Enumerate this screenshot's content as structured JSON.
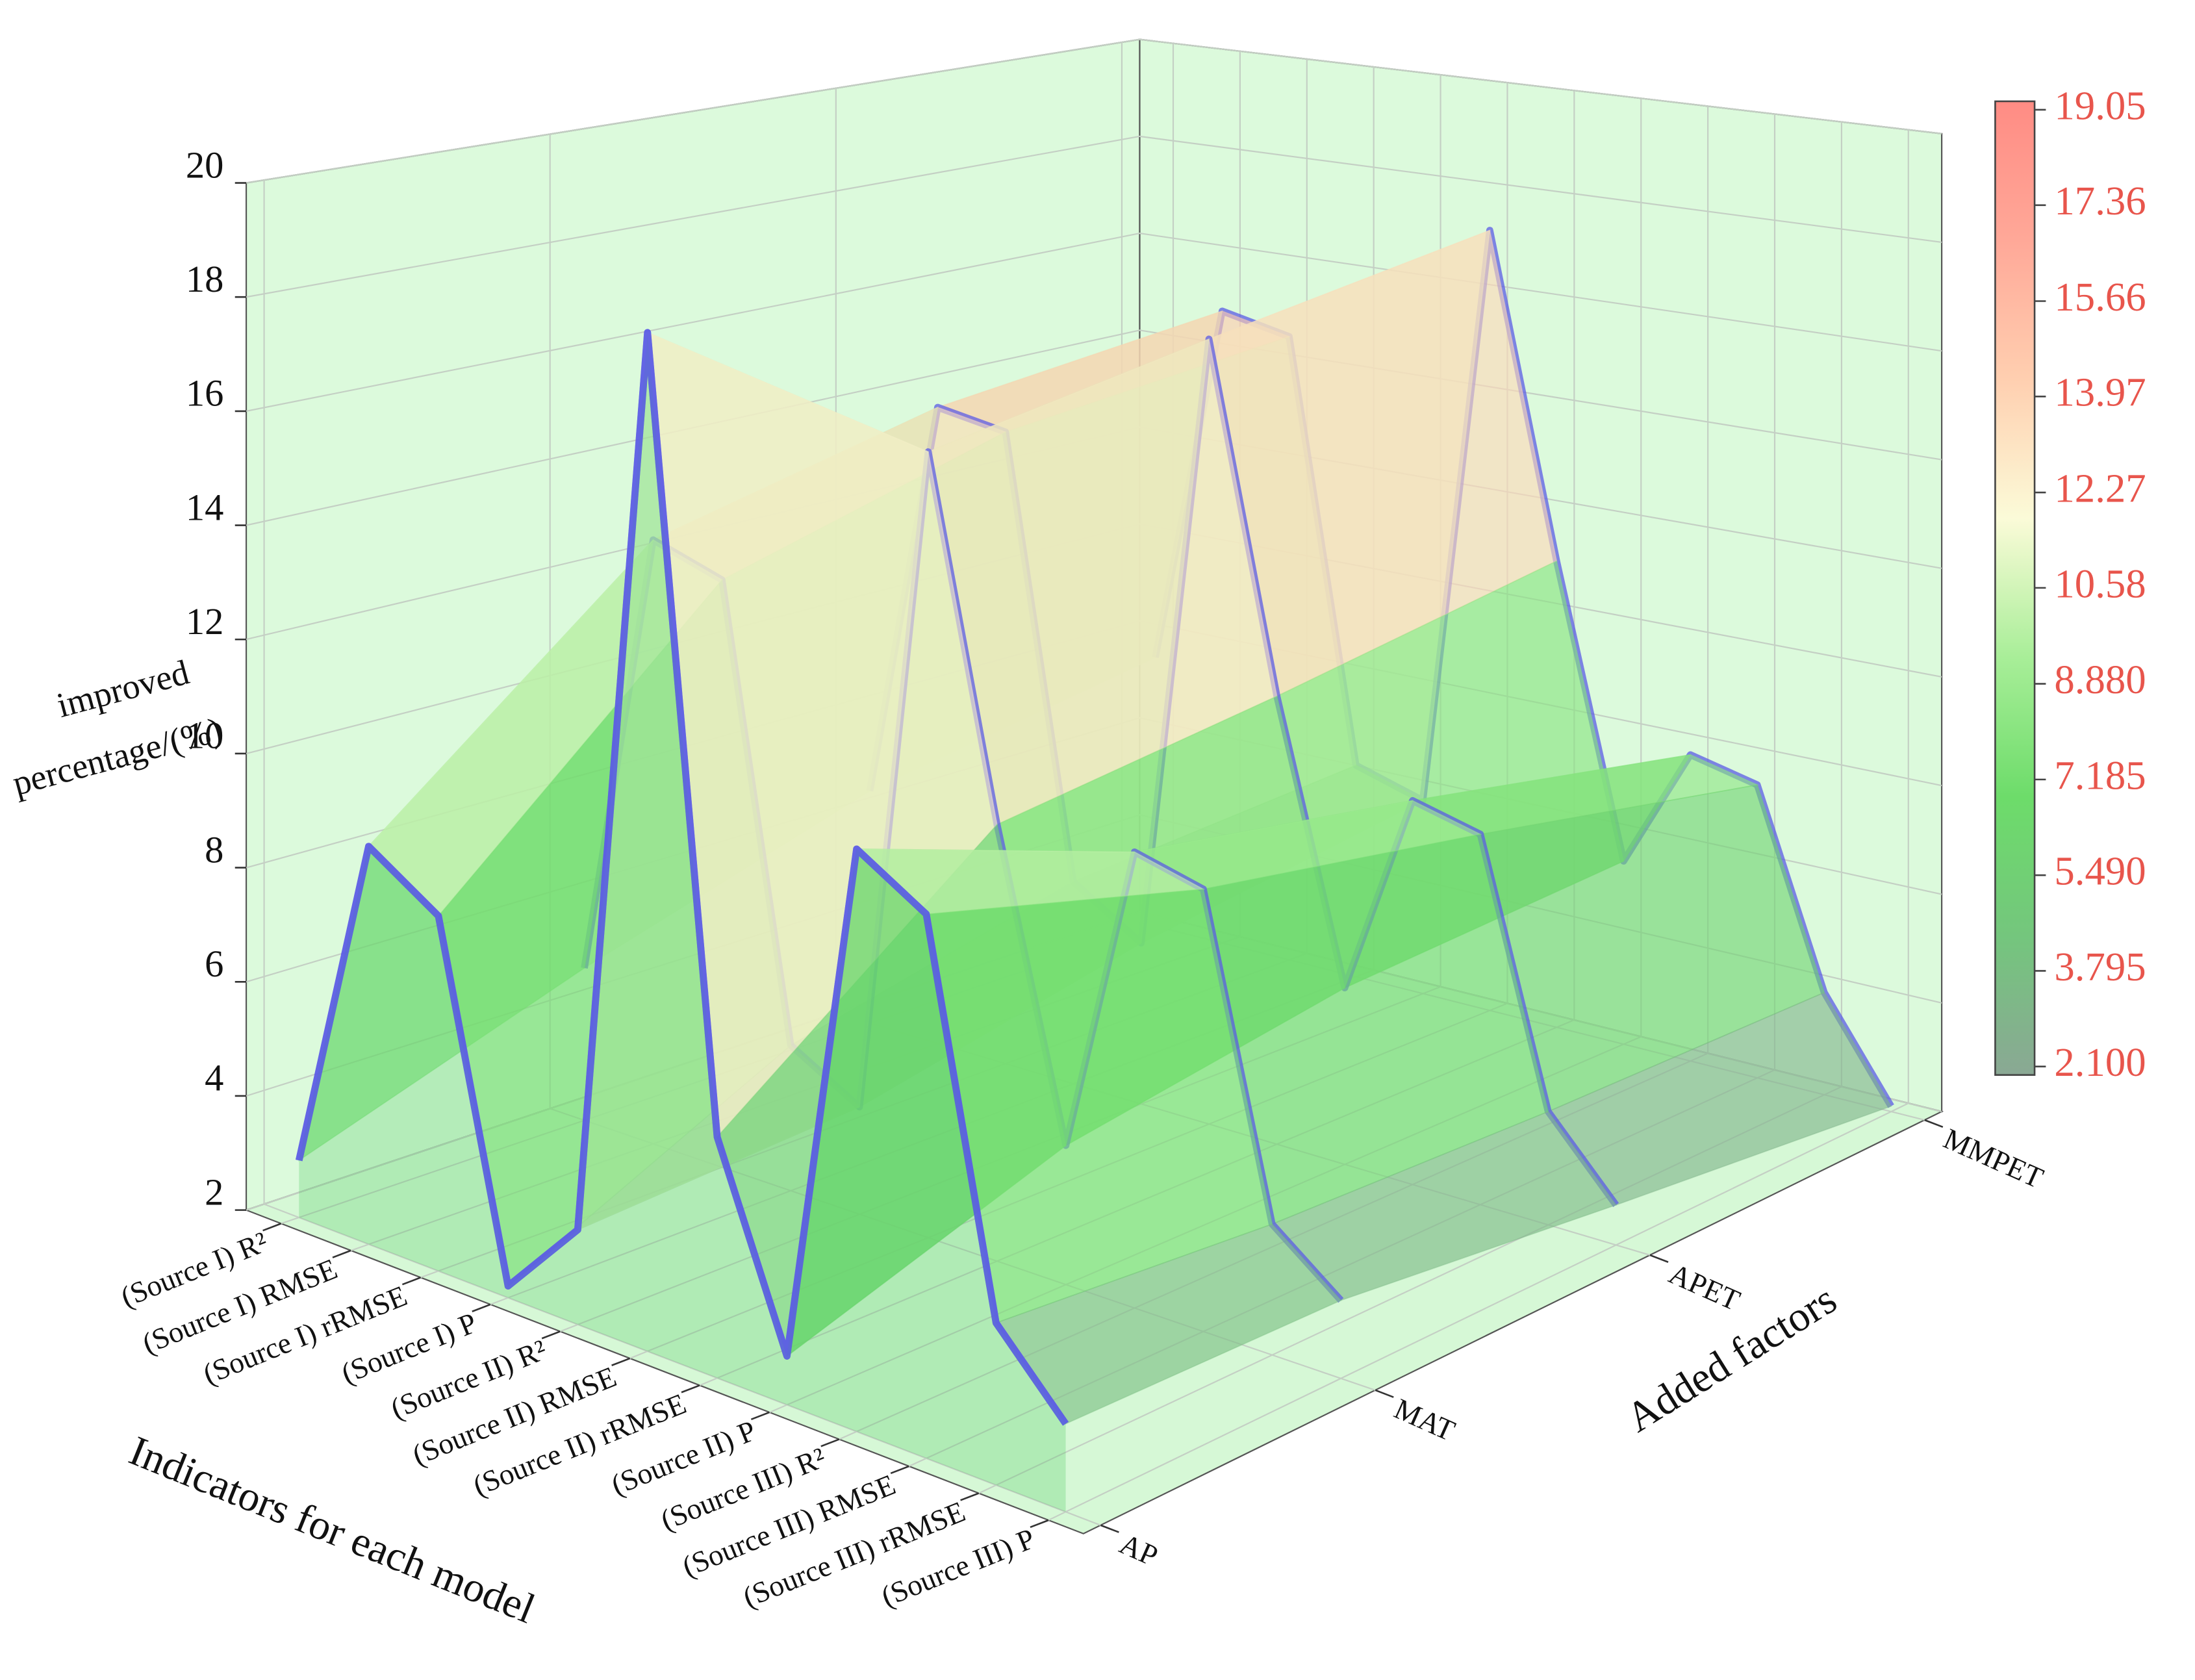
{
  "chart_data": {
    "type": "surface",
    "x_label": "Indicators for each model",
    "y_label": "Added factors",
    "z_label": [
      "improved",
      "percentage/(%)"
    ],
    "categories": [
      "(Source I) R²",
      "(Source I) RMSE",
      "(Source I) rRMSE",
      "(Source I) P",
      "(Source II) R²",
      "(Source II) RMSE",
      "(Source II) rRMSE",
      "(Source II) P",
      "(Source III) R²",
      "(Source III) RMSE",
      "(Source III) rRMSE",
      "(Source III) P"
    ],
    "series": [
      {
        "name": "AP",
        "values": [
          3.0,
          8.9,
          8.1,
          2.2,
          3.6,
          19.05,
          6.0,
          2.8,
          11.5,
          10.8,
          4.6,
          3.4
        ]
      },
      {
        "name": "MAT",
        "values": [
          4.8,
          13.0,
          12.6,
          4.6,
          3.9,
          15.8,
          9.6,
          4.4,
          9.8,
          9.5,
          4.2,
          3.3
        ]
      },
      {
        "name": "APET",
        "values": [
          6.5,
          14.2,
          14.0,
          5.8,
          5.0,
          16.5,
          10.2,
          5.2,
          8.9,
          8.6,
          4.0,
          2.7
        ]
      },
      {
        "name": "MMPET",
        "values": [
          7.5,
          14.8,
          14.5,
          6.2,
          5.8,
          17.2,
          11.0,
          5.5,
          7.8,
          7.5,
          3.9,
          2.1
        ]
      }
    ],
    "line_color": "#5b5be6",
    "zlim": [
      2,
      20
    ],
    "zticks": [
      2,
      4,
      6,
      8,
      10,
      12,
      14,
      16,
      18,
      20
    ],
    "grid": true,
    "colorbar": {
      "lim": [
        2.1,
        19.05
      ],
      "ticks": [
        19.05,
        17.36,
        15.66,
        13.97,
        12.27,
        10.58,
        {
          "value": 8.88,
          "label": "8.880"
        },
        7.185,
        {
          "value": 5.49,
          "label": "5.490"
        },
        3.795,
        {
          "value": 2.1,
          "label": "2.100"
        }
      ],
      "label_color": "#e8554c",
      "colors": [
        "#8aa894",
        "#74c67d",
        "#6ddc6a",
        "#a8ee98",
        "#fbfbd8",
        "#ffcfb0",
        "#ffa898",
        "#ff8c84"
      ]
    }
  }
}
